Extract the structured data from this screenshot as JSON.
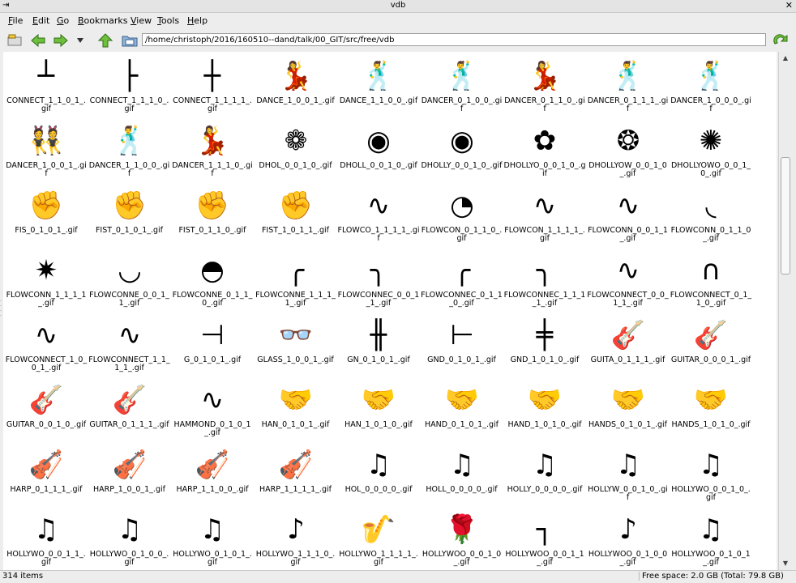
{
  "window": {
    "title": "vdb",
    "left_glyph": "⇥",
    "close_glyph": "✕"
  },
  "menu": [
    "File",
    "Edit",
    "Go",
    "Bookmarks",
    "View",
    "Tools",
    "Help"
  ],
  "location": {
    "path": "/home/christoph/2016/160510--dand/talk/00_GIT/src/free/vdb"
  },
  "toolbar_icons": [
    "new-tab-icon",
    "back-arrow-icon",
    "forward-arrow-icon",
    "history-dropdown-icon",
    "up-arrow-icon",
    "folder-icon",
    "go-icon"
  ],
  "files": [
    {
      "label": "CONNECT_1_1_0_1_.gif",
      "glyph": "┴"
    },
    {
      "label": "CONNECT_1_1_1_0_.gif",
      "glyph": "├"
    },
    {
      "label": "CONNECT_1_1_1_1_.gif",
      "glyph": "┼"
    },
    {
      "label": "DANCE_1_0_0_1_.gif",
      "glyph": "💃"
    },
    {
      "label": "DANCE_1_1_0_0_.gif",
      "glyph": "🕺"
    },
    {
      "label": "DANCER_0_1_0_0_.gif",
      "glyph": "🕺"
    },
    {
      "label": "DANCER_0_1_1_0_.gif",
      "glyph": "💃"
    },
    {
      "label": "DANCER_0_1_1_1_.gif",
      "glyph": "🕺"
    },
    {
      "label": "DANCER_1_0_0_0_.gif",
      "glyph": "🕺"
    },
    {
      "label": "DANCER_1_0_0_1_.gif",
      "glyph": "👯"
    },
    {
      "label": "DANCER_1_1_0_0_.gif",
      "glyph": "🕺"
    },
    {
      "label": "DANCER_1_1_1_0_.gif",
      "glyph": "💃"
    },
    {
      "label": "DHOL_0_0_1_0_.gif",
      "glyph": "❁"
    },
    {
      "label": "DHOLL_0_0_1_0_.gif",
      "glyph": "◉"
    },
    {
      "label": "DHOLLY_0_0_1_0_.gif",
      "glyph": "◉"
    },
    {
      "label": "DHOLLYO_0_0_1_0_.gif",
      "glyph": "✿"
    },
    {
      "label": "DHOLLYOW_0_0_1_0_.gif",
      "glyph": "❂"
    },
    {
      "label": "DHOLLYOWO_0_0_1_0_.gif",
      "glyph": "✺"
    },
    {
      "label": "FIS_0_1_0_1_.gif",
      "glyph": "✊"
    },
    {
      "label": "FIST_0_1_0_1_.gif",
      "glyph": "✊"
    },
    {
      "label": "FIST_0_1_1_0_.gif",
      "glyph": "✊"
    },
    {
      "label": "FIST_1_0_1_1_.gif",
      "glyph": "✊"
    },
    {
      "label": "FLOWCO_1_1_1_1_.gif",
      "glyph": "∿"
    },
    {
      "label": "FLOWCON_0_1_1_0_.gif",
      "glyph": "◔"
    },
    {
      "label": "FLOWCON_1_1_1_1_.gif",
      "glyph": "∿"
    },
    {
      "label": "FLOWCONN_0_0_1_1_.gif",
      "glyph": "∿"
    },
    {
      "label": "FLOWCONN_0_1_1_0_.gif",
      "glyph": "◟"
    },
    {
      "label": "FLOWCONN_1_1_1_1_.gif",
      "glyph": "✷"
    },
    {
      "label": "FLOWCONNE_0_0_1_1_.gif",
      "glyph": "◡"
    },
    {
      "label": "FLOWCONNE_0_1_1_0_.gif",
      "glyph": "◓"
    },
    {
      "label": "FLOWCONNE_1_1_1_1_.gif",
      "glyph": "╭"
    },
    {
      "label": "FLOWCONNEC_0_0_1_1_.gif",
      "glyph": "╮"
    },
    {
      "label": "FLOWCONNEC_0_1_1_0_.gif",
      "glyph": "╭"
    },
    {
      "label": "FLOWCONNEC_1_1_1_1_.gif",
      "glyph": "╮"
    },
    {
      "label": "FLOWCONNECT_0_0_1_1_.gif",
      "glyph": "∿"
    },
    {
      "label": "FLOWCONNECT_0_1_1_0_.gif",
      "glyph": "∩"
    },
    {
      "label": "FLOWCONNECT_1_0_0_1_.gif",
      "glyph": "∿"
    },
    {
      "label": "FLOWCONNECT_1_1_1_1_.gif",
      "glyph": "∿"
    },
    {
      "label": "G_0_1_0_1_.gif",
      "glyph": "⊣"
    },
    {
      "label": "GLASS_1_0_0_1_.gif",
      "glyph": "👓"
    },
    {
      "label": "GN_0_1_0_1_.gif",
      "glyph": "╫"
    },
    {
      "label": "GND_0_1_0_1_.gif",
      "glyph": "⊢"
    },
    {
      "label": "GND_1_0_1_0_.gif",
      "glyph": "╪"
    },
    {
      "label": "GUITA_0_1_1_1_.gif",
      "glyph": "🎸"
    },
    {
      "label": "GUITAR_0_0_0_1_.gif",
      "glyph": "🎸"
    },
    {
      "label": "GUITAR_0_0_1_0_.gif",
      "glyph": "🎸"
    },
    {
      "label": "GUITAR_0_1_1_1_.gif",
      "glyph": "🎸"
    },
    {
      "label": "HAMMOND_0_1_0_1_.gif",
      "glyph": "∿"
    },
    {
      "label": "HAN_0_1_0_1_.gif",
      "glyph": "🤝"
    },
    {
      "label": "HAN_1_0_1_0_.gif",
      "glyph": "🤝"
    },
    {
      "label": "HAND_0_1_0_1_.gif",
      "glyph": "🤝"
    },
    {
      "label": "HAND_1_0_1_0_.gif",
      "glyph": "🤝"
    },
    {
      "label": "HANDS_0_1_0_1_.gif",
      "glyph": "🤝"
    },
    {
      "label": "HANDS_1_0_1_0_.gif",
      "glyph": "🤝"
    },
    {
      "label": "HARP_0_1_1_1_.gif",
      "glyph": "🎻"
    },
    {
      "label": "HARP_1_0_0_1_.gif",
      "glyph": "🎻"
    },
    {
      "label": "HARP_1_1_0_0_.gif",
      "glyph": "🎻"
    },
    {
      "label": "HARP_1_1_1_1_.gif",
      "glyph": "🎻"
    },
    {
      "label": "HOL_0_0_0_0_.gif",
      "glyph": "♫"
    },
    {
      "label": "HOLL_0_0_0_0_.gif",
      "glyph": "♫"
    },
    {
      "label": "HOLLY_0_0_0_0_.gif",
      "glyph": "♫"
    },
    {
      "label": "HOLLYW_0_0_1_0_.gif",
      "glyph": "♫"
    },
    {
      "label": "HOLLYWO_0_0_1_0_.gif",
      "glyph": "♫"
    },
    {
      "label": "HOLLYWO_0_0_1_1_.gif",
      "glyph": "♫"
    },
    {
      "label": "HOLLYWO_0_1_0_0_.gif",
      "glyph": "♫"
    },
    {
      "label": "HOLLYWO_0_1_0_1_.gif",
      "glyph": "♫"
    },
    {
      "label": "HOLLYWO_1_1_1_0_.gif",
      "glyph": "♪"
    },
    {
      "label": "HOLLYWO_1_1_1_1_.gif",
      "glyph": "🎷"
    },
    {
      "label": "HOLLYWOO_0_0_1_0_.gif",
      "glyph": "🌹"
    },
    {
      "label": "HOLLYWOO_0_0_1_1_.gif",
      "glyph": "┐"
    },
    {
      "label": "HOLLYWOO_0_1_0_0_.gif",
      "glyph": "♪"
    },
    {
      "label": "HOLLYWOO_0_1_0_1_.gif",
      "glyph": "♫"
    }
  ],
  "status": {
    "items": "314 items",
    "free_space": "Free space: 2.0 GB (Total: 79.8 GB)"
  }
}
